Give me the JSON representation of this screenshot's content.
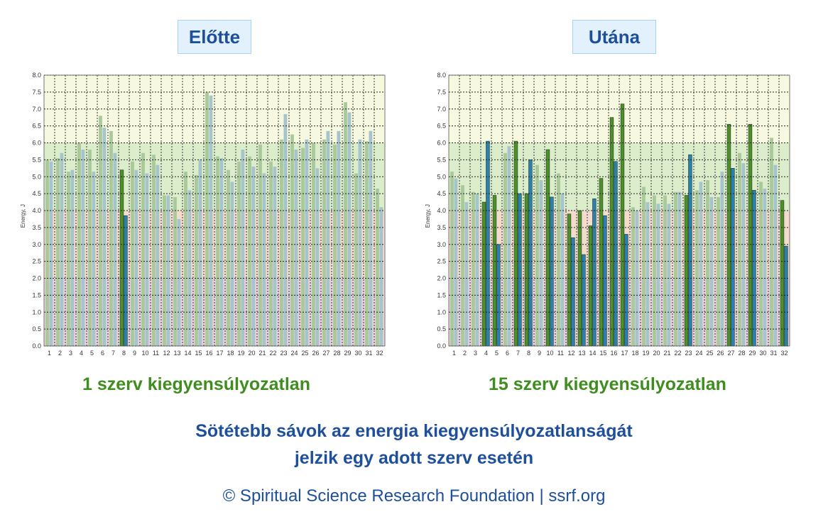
{
  "colors": {
    "title_text": "#1e4f9a",
    "title_bg": "#e2f1fb",
    "caption": "#3f8d1e",
    "zone_high": "#f6f8df",
    "zone_mid": "#dcedcb",
    "zone_low": "#f3dccd",
    "zone_bottom": "#ead2dc",
    "green_dark": "#4f8f2b",
    "green_light": "#aac99b",
    "blue_dark": "#2b7fb0",
    "blue_light": "#a6c4cc"
  },
  "panels": {
    "left": {
      "title": "Előtte",
      "caption": "1 szerv kiegyensúlyozatlan"
    },
    "right": {
      "title": "Utána",
      "caption": "15 szerv kiegyensúlyozatlan"
    }
  },
  "note": {
    "line1": "Sötétebb sávok az energia kiegyensúlyozatlanságát",
    "line2": "jelzik egy adott szerv esetén"
  },
  "footer": "© Spiritual Science Research Foundation | ssrf.org",
  "chart_data": [
    {
      "type": "bar",
      "title": "Előtte",
      "ylabel": "Energy, J",
      "xlabel": "",
      "ylim": [
        0,
        8
      ],
      "yticks": [
        "0.0",
        "0.5",
        "1.0",
        "1.5",
        "2.0",
        "2.5",
        "3.0",
        "3.5",
        "4.0",
        "4.5",
        "5.0",
        "5.5",
        "6.0",
        "6.5",
        "7.0",
        "7.5",
        "8.0"
      ],
      "categories": [
        "1",
        "2",
        "3",
        "4",
        "5",
        "6",
        "7",
        "8",
        "9",
        "10",
        "11",
        "12",
        "13",
        "14",
        "15",
        "16",
        "17",
        "18",
        "19",
        "20",
        "21",
        "22",
        "23",
        "24",
        "25",
        "26",
        "27",
        "28",
        "29",
        "30",
        "31",
        "32"
      ],
      "grid": true,
      "series": [
        {
          "values": [
            5.5,
            5.55,
            5.15,
            6.0,
            5.8,
            6.8,
            6.35,
            5.2,
            5.45,
            5.7,
            5.65,
            4.45,
            4.4,
            5.15,
            5.05,
            7.5,
            5.6,
            5.2,
            5.45,
            5.6,
            5.95,
            5.45,
            6.1,
            6.25,
            5.85,
            6.0,
            6.1,
            5.95,
            7.2,
            5.1,
            6.05,
            4.65
          ]
        },
        {
          "values": [
            5.45,
            5.7,
            5.2,
            5.8,
            5.15,
            6.45,
            5.7,
            3.85,
            5.2,
            5.1,
            5.35,
            4.45,
            3.75,
            4.6,
            5.5,
            7.4,
            5.55,
            4.85,
            5.8,
            5.3,
            5.1,
            5.3,
            6.85,
            5.8,
            6.1,
            5.25,
            6.35,
            6.35,
            6.9,
            6.1,
            6.35,
            4.1
          ]
        }
      ],
      "highlighted": [
        8
      ]
    },
    {
      "type": "bar",
      "title": "Utána",
      "ylabel": "Energy, J",
      "xlabel": "",
      "ylim": [
        0,
        8
      ],
      "yticks": [
        "0.0",
        "0.5",
        "1.0",
        "1.5",
        "2.0",
        "2.5",
        "3.0",
        "3.5",
        "4.0",
        "4.5",
        "5.0",
        "5.5",
        "6.0",
        "6.5",
        "7.0",
        "7.5",
        "8.0"
      ],
      "categories": [
        "1",
        "2",
        "3",
        "4",
        "5",
        "6",
        "7",
        "8",
        "9",
        "10",
        "11",
        "12",
        "13",
        "14",
        "15",
        "16",
        "17",
        "18",
        "19",
        "20",
        "21",
        "22",
        "23",
        "24",
        "25",
        "26",
        "27",
        "28",
        "29",
        "30",
        "31",
        "32"
      ],
      "grid": true,
      "series": [
        {
          "values": [
            5.15,
            4.75,
            4.55,
            4.25,
            4.45,
            5.7,
            6.05,
            4.5,
            5.35,
            5.8,
            5.1,
            3.9,
            4.0,
            3.55,
            4.95,
            6.75,
            7.15,
            4.1,
            4.7,
            4.45,
            4.45,
            4.55,
            4.45,
            4.6,
            4.9,
            4.4,
            6.55,
            5.7,
            6.55,
            4.85,
            6.15,
            4.3
          ]
        },
        {
          "values": [
            4.95,
            4.25,
            4.5,
            6.05,
            3.0,
            5.9,
            4.5,
            5.5,
            4.9,
            4.4,
            4.5,
            3.2,
            2.7,
            4.35,
            3.85,
            5.45,
            3.3,
            4.0,
            4.25,
            4.2,
            4.2,
            4.55,
            5.65,
            4.85,
            4.4,
            5.15,
            5.25,
            5.4,
            4.6,
            4.65,
            5.35,
            2.95
          ]
        }
      ],
      "highlighted": [
        4,
        5,
        7,
        8,
        10,
        12,
        13,
        14,
        15,
        16,
        17,
        23,
        27,
        29,
        32
      ]
    }
  ]
}
